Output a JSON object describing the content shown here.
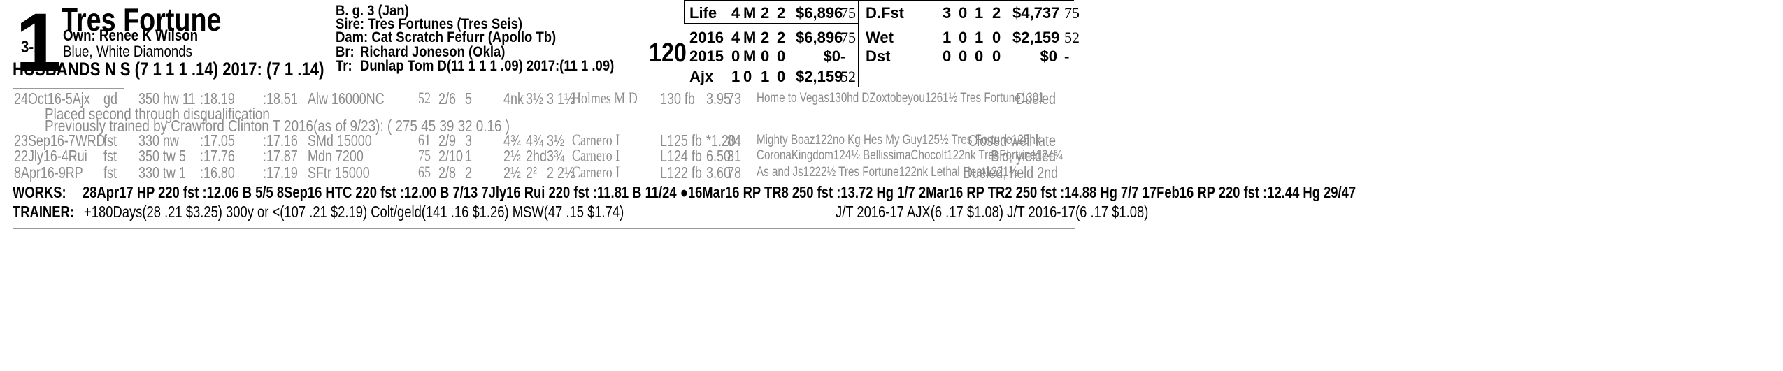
{
  "horse": {
    "program_number": "1",
    "name": "Tres Fortune",
    "morning_line": "3-1",
    "owner": "Own: Renee K Wilson",
    "silks": "Blue, White Diamonds",
    "jockey_line": "HUSBANDS N S (7 1 1 1 .14) 2017: (7 1 .14)",
    "weight": "120"
  },
  "pedigree": {
    "sex_age": "B. g. 3 (Jan)",
    "sire": "Sire: Tres Fortunes (Tres Seis)",
    "dam": "Dam: Cat Scratch Fefurr (Apollo Tb)",
    "breeder_label": "Br:",
    "breeder": "Richard Joneson (Okla)",
    "trainer_label": "Tr:",
    "trainer": "Dunlap Tom D(11 1 1 1 .09)  2017:(11 1 .09)"
  },
  "records_left": [
    {
      "label": "Life",
      "st": "4",
      "w": "M",
      "p": "2",
      "s": "2",
      "earn": "$6,896",
      "speed": "75"
    },
    {
      "label": "2016",
      "st": "4",
      "w": "M",
      "p": "2",
      "s": "2",
      "earn": "$6,896",
      "speed": "75"
    },
    {
      "label": "2015",
      "st": "0",
      "w": "M",
      "p": "0",
      "s": "0",
      "earn": "$0",
      "speed": "-"
    },
    {
      "label": "Ajx",
      "st": "1",
      "w": "0",
      "p": "1",
      "s": "0",
      "earn": "$2,159",
      "speed": "52"
    }
  ],
  "records_right": [
    {
      "label": "D.Fst",
      "st": "3",
      "w": "0",
      "p": "1",
      "s": "2",
      "earn": "$4,737",
      "speed": "75"
    },
    {
      "label": "Wet",
      "st": "1",
      "w": "0",
      "p": "1",
      "s": "0",
      "earn": "$2,159",
      "speed": "52"
    },
    {
      "label": "Dst",
      "st": "0",
      "w": "0",
      "p": "0",
      "s": "0",
      "earn": "$0",
      "speed": "-"
    }
  ],
  "past_performances": [
    {
      "date": "24Oct16-5Ajx",
      "cond": "gd",
      "dist": "350 hw 11",
      "f1": ":18.19",
      "f2": ":18.51",
      "race": "Alw 16000NC",
      "sp": "52",
      "pp": "2/6",
      "st": "5",
      "fin1": "4nk",
      "fin2": "3½",
      "fin3": "3 1½",
      "jockey": "Holmes M D",
      "wt": "130 fb",
      "odds": "3.95",
      "spd": "73",
      "comment": "Home to Vegas130hd  DZoxtobeyou1261½ Tres Fortune1301",
      "result": "Dueled"
    },
    {
      "date": "23Sep16-7WRD",
      "cond": "fst",
      "dist": "330 nw",
      "f1": ":17.05",
      "f2": ":17.16",
      "race": "SMd 15000",
      "sp": "61",
      "pp": "2/9",
      "st": "3",
      "fin1": "4¾",
      "fin2": "4¾",
      "fin3": "3½",
      "jockey": "Carnero I",
      "wt": "L125 fb",
      "odds": "*1.20",
      "spd": "84",
      "comment": "Mighty Boaz122no Kg Hes My Guy125½ Tres Fortune125nk",
      "result": "Closed well late"
    },
    {
      "date": "22Jly16-4Rui",
      "cond": "fst",
      "dist": "350 tw 5",
      "f1": ":17.76",
      "f2": ":17.87",
      "race": "Mdn 7200",
      "sp": "75",
      "pp": "2/10",
      "st": "1",
      "fin1": "2½",
      "fin2": "2hd",
      "fin3": "3¾",
      "jockey": "Carnero I",
      "wt": "L124 fb",
      "odds": "6.50",
      "spd": "81",
      "comment": "CoronaKingdom124½ BellissimaChocolt122nk TresFortune124¾",
      "result": "Bid, yielded"
    },
    {
      "date": "8Apr16-9RP",
      "cond": "fst",
      "dist": "330 tw 1",
      "f1": ":16.80",
      "f2": ":17.19",
      "race": "SFtr 15000",
      "sp": "65",
      "pp": "2/8",
      "st": "2",
      "fin1": "2½",
      "fin2": "2²",
      "fin3": "2 2½",
      "jockey": "Carnero I",
      "wt": "L122 fb",
      "odds": "3.60",
      "spd": "78",
      "comment": "As and Js1222½ Tres Fortune122nk Lethal Heat1221½",
      "result": "Dueled, held 2nd"
    }
  ],
  "notes": {
    "placed": "Placed second through disqualification",
    "prev_trainer": "Previously trained by Crawford Clinton T 2016(as of 9/23): ( 275 45 39 32 0.16 )"
  },
  "works": {
    "label": "WORKS:",
    "text": "28Apr17 HP  220 fst  :12.06 B 5/5   8Sep16 HTC 220 fst  :12.00 B 7/13   7Jly16 Rui 220 fst  :11.81 B 11/24   ●16Mar16 RP  TR8 250 fst  :13.72 Hg 1/7   2Mar16 RP  TR2 250 fst  :14.88 Hg 7/7   17Feb16 RP  220 fst  :12.44 Hg 29/47"
  },
  "trainer_stats": {
    "label": "TRAINER:",
    "text": "+180Days(28 .21 $3.25) 300y or <(107 .21 $2.19) Colt/geld(141 .16 $1.26) MSW(47 .15 $1.74)",
    "jt": "J/T 2016-17 AJX(6 .17 $1.08)  J/T 2016-17(6 .17 $1.08)"
  }
}
